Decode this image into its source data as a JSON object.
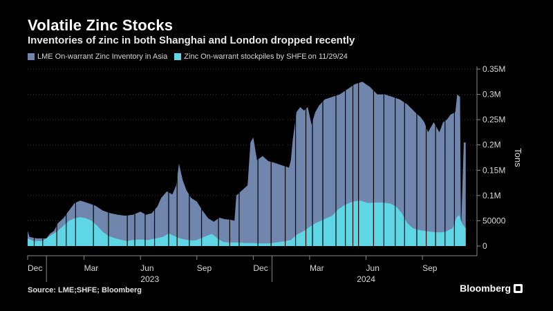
{
  "header": {
    "title": "Volatile Zinc Stocks",
    "subtitle": "Inventories of zinc in both Shanghai and London dropped recently"
  },
  "footer": {
    "source": "Source: LME;SHFE; Bloomberg",
    "brand": "Bloomberg"
  },
  "colors": {
    "lme": "#7186ad",
    "shfe": "#5fd6e3",
    "axis": "#8a8a8a",
    "grid": "#3a3a3a"
  },
  "chart_data": {
    "type": "area",
    "title": "Volatile Zinc Stocks",
    "ylabel": "Tons",
    "ylim": [
      0,
      350000
    ],
    "yticks": [
      0,
      50000,
      100000,
      150000,
      200000,
      250000,
      300000,
      350000
    ],
    "ytick_labels": [
      "0",
      "50000",
      "0.1M",
      "0.15M",
      "0.2M",
      "0.25M",
      "0.3M",
      "0.35M"
    ],
    "xlim": [
      0,
      23.9
    ],
    "month_ticks": [
      {
        "x": 0,
        "label": "Dec"
      },
      {
        "x": 3,
        "label": "Mar"
      },
      {
        "x": 6,
        "label": "Jun"
      },
      {
        "x": 9,
        "label": "Sep"
      },
      {
        "x": 12,
        "label": "Dec"
      },
      {
        "x": 15,
        "label": "Mar"
      },
      {
        "x": 18,
        "label": "Jun"
      },
      {
        "x": 21,
        "label": "Sep"
      }
    ],
    "year_labels": [
      {
        "x": 6.5,
        "label": "2023"
      },
      {
        "x": 18,
        "label": "2024"
      }
    ],
    "year_separators": [
      1.0,
      13.0
    ],
    "legend_date": "on 11/29/24",
    "series": [
      {
        "name": "LME On-warrant Zinc Inventory in Asia",
        "points": [
          [
            0,
            30000
          ],
          [
            0.1,
            18000
          ],
          [
            0.5,
            15000
          ],
          [
            1.0,
            15000
          ],
          [
            1.2,
            25000
          ],
          [
            1.4,
            30000
          ],
          [
            1.6,
            45000
          ],
          [
            1.9,
            55000
          ],
          [
            2.2,
            70000
          ],
          [
            2.5,
            85000
          ],
          [
            2.8,
            90000
          ],
          [
            3.2,
            85000
          ],
          [
            3.6,
            80000
          ],
          [
            4.0,
            70000
          ],
          [
            4.4,
            65000
          ],
          [
            4.8,
            62000
          ],
          [
            5.2,
            60000
          ],
          [
            5.6,
            62000
          ],
          [
            6.0,
            68000
          ],
          [
            6.3,
            62000
          ],
          [
            6.6,
            65000
          ],
          [
            6.9,
            78000
          ],
          [
            7.1,
            95000
          ],
          [
            7.4,
            108000
          ],
          [
            7.7,
            102000
          ],
          [
            7.9,
            120000
          ],
          [
            8.05,
            163000
          ],
          [
            8.25,
            130000
          ],
          [
            8.45,
            110000
          ],
          [
            8.7,
            95000
          ],
          [
            9.0,
            88000
          ],
          [
            9.3,
            70000
          ],
          [
            9.6,
            55000
          ],
          [
            9.9,
            48000
          ],
          [
            10.2,
            56000
          ],
          [
            10.5,
            53000
          ],
          [
            10.8,
            52000
          ],
          [
            11.0,
            50000
          ],
          [
            11.1,
            100000
          ],
          [
            11.4,
            110000
          ],
          [
            11.7,
            120000
          ],
          [
            11.85,
            205000
          ],
          [
            12.0,
            215000
          ],
          [
            12.2,
            170000
          ],
          [
            12.5,
            178000
          ],
          [
            12.8,
            168000
          ],
          [
            13.1,
            165000
          ],
          [
            13.5,
            160000
          ],
          [
            13.9,
            155000
          ],
          [
            14.0,
            170000
          ],
          [
            14.1,
            210000
          ],
          [
            14.3,
            265000
          ],
          [
            14.5,
            275000
          ],
          [
            14.7,
            268000
          ],
          [
            14.9,
            275000
          ],
          [
            15.1,
            240000
          ],
          [
            15.3,
            265000
          ],
          [
            15.5,
            278000
          ],
          [
            15.8,
            290000
          ],
          [
            16.2,
            295000
          ],
          [
            16.6,
            300000
          ],
          [
            17.0,
            310000
          ],
          [
            17.4,
            320000
          ],
          [
            17.8,
            325000
          ],
          [
            18.2,
            315000
          ],
          [
            18.6,
            300000
          ],
          [
            19.0,
            300000
          ],
          [
            19.4,
            295000
          ],
          [
            19.8,
            290000
          ],
          [
            20.2,
            280000
          ],
          [
            20.6,
            265000
          ],
          [
            20.9,
            255000
          ],
          [
            21.1,
            245000
          ],
          [
            21.3,
            225000
          ],
          [
            21.6,
            245000
          ],
          [
            21.9,
            225000
          ],
          [
            22.1,
            245000
          ],
          [
            22.3,
            250000
          ],
          [
            22.5,
            260000
          ],
          [
            22.75,
            265000
          ],
          [
            22.85,
            300000
          ],
          [
            23.0,
            295000
          ],
          [
            23.05,
            30000
          ],
          [
            23.2,
            205000
          ],
          [
            23.3,
            205000
          ]
        ]
      },
      {
        "name": "Zinc On-warrant stockpiles by SHFE",
        "points": [
          [
            0,
            15000
          ],
          [
            0.3,
            10000
          ],
          [
            0.8,
            10000
          ],
          [
            1.1,
            18000
          ],
          [
            1.4,
            25000
          ],
          [
            1.6,
            30000
          ],
          [
            1.9,
            40000
          ],
          [
            2.2,
            50000
          ],
          [
            2.5,
            55000
          ],
          [
            2.8,
            57000
          ],
          [
            3.1,
            55000
          ],
          [
            3.4,
            50000
          ],
          [
            3.7,
            40000
          ],
          [
            4.0,
            28000
          ],
          [
            4.3,
            20000
          ],
          [
            4.6,
            16000
          ],
          [
            5.0,
            12000
          ],
          [
            5.3,
            10000
          ],
          [
            5.6,
            12000
          ],
          [
            6.0,
            13000
          ],
          [
            6.4,
            12000
          ],
          [
            6.8,
            15000
          ],
          [
            7.2,
            18000
          ],
          [
            7.5,
            25000
          ],
          [
            7.8,
            20000
          ],
          [
            8.1,
            15000
          ],
          [
            8.5,
            12000
          ],
          [
            8.8,
            11000
          ],
          [
            9.0,
            12000
          ],
          [
            9.5,
            20000
          ],
          [
            9.8,
            24000
          ],
          [
            10.1,
            15000
          ],
          [
            10.4,
            8000
          ],
          [
            10.7,
            7000
          ],
          [
            11.2,
            7000
          ],
          [
            11.6,
            6000
          ],
          [
            12.0,
            6000
          ],
          [
            12.4,
            5000
          ],
          [
            12.8,
            5000
          ],
          [
            13.2,
            7000
          ],
          [
            13.6,
            9000
          ],
          [
            14.0,
            12000
          ],
          [
            14.3,
            22000
          ],
          [
            14.7,
            30000
          ],
          [
            15.0,
            38000
          ],
          [
            15.3,
            45000
          ],
          [
            15.6,
            50000
          ],
          [
            15.9,
            55000
          ],
          [
            16.2,
            60000
          ],
          [
            16.5,
            72000
          ],
          [
            16.9,
            82000
          ],
          [
            17.3,
            88000
          ],
          [
            17.7,
            90000
          ],
          [
            18.1,
            85000
          ],
          [
            18.5,
            86000
          ],
          [
            18.9,
            86000
          ],
          [
            19.3,
            84000
          ],
          [
            19.6,
            78000
          ],
          [
            19.9,
            65000
          ],
          [
            20.2,
            45000
          ],
          [
            20.5,
            35000
          ],
          [
            20.8,
            32000
          ],
          [
            21.1,
            30000
          ],
          [
            21.5,
            28000
          ],
          [
            21.9,
            27000
          ],
          [
            22.2,
            28000
          ],
          [
            22.6,
            35000
          ],
          [
            22.8,
            55000
          ],
          [
            22.95,
            62000
          ],
          [
            23.1,
            45000
          ],
          [
            23.3,
            35000
          ]
        ]
      }
    ],
    "dips": [
      0.35,
      0.8,
      1.55,
      2.05,
      2.55,
      3.5,
      4.3,
      5.3,
      5.7,
      6.25,
      6.75,
      7.5,
      7.95,
      8.6,
      9.25,
      10.15,
      10.75,
      11.25,
      12.25,
      12.95,
      13.7,
      14.25,
      14.8,
      15.15,
      15.7,
      16.4,
      16.9,
      17.3,
      17.6,
      18.4,
      18.95,
      19.55,
      20.05,
      20.7,
      21.2,
      21.7,
      22.2,
      22.7
    ]
  }
}
